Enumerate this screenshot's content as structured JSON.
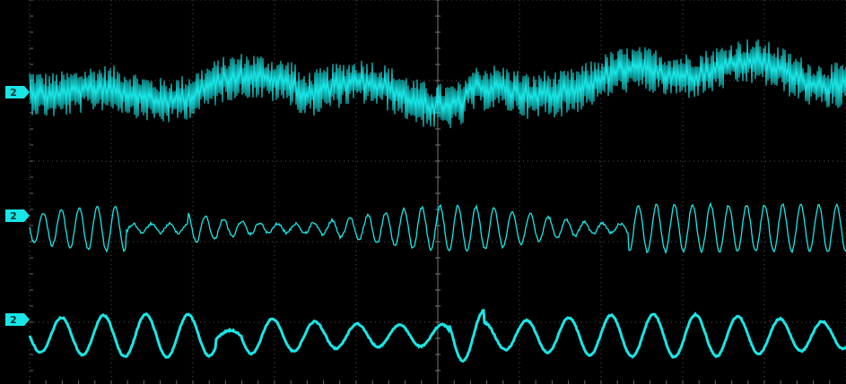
{
  "channels": [
    {
      "label": "2"
    },
    {
      "label": "2"
    },
    {
      "label": "2"
    }
  ]
}
